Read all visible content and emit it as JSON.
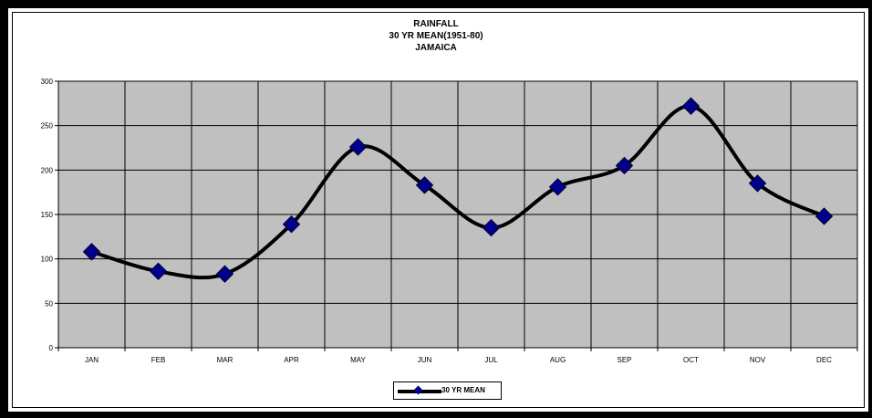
{
  "chart_data": {
    "type": "line",
    "title": "RAINFALL",
    "subtitle_lines": [
      "30 YR MEAN(1951-80)",
      "JAMAICA"
    ],
    "categories": [
      "JAN",
      "FEB",
      "MAR",
      "APR",
      "MAY",
      "JUN",
      "JUL",
      "AUG",
      "SEP",
      "OCT",
      "NOV",
      "DEC"
    ],
    "series": [
      {
        "name": "30 YR MEAN",
        "values": [
          108,
          86,
          83,
          139,
          226,
          183,
          135,
          181,
          205,
          272,
          185,
          148
        ]
      }
    ],
    "ylim": [
      0,
      300
    ],
    "y_ticks": [
      "0",
      "50",
      "100",
      "150",
      "200",
      "250",
      "300"
    ],
    "xlabel": "",
    "ylabel": "",
    "grid": true,
    "legend_position": "bottom-center",
    "colors": {
      "plot_background": "#c0c0c0",
      "line": "#000000",
      "marker": "#00008b",
      "grid": "#000000"
    }
  }
}
